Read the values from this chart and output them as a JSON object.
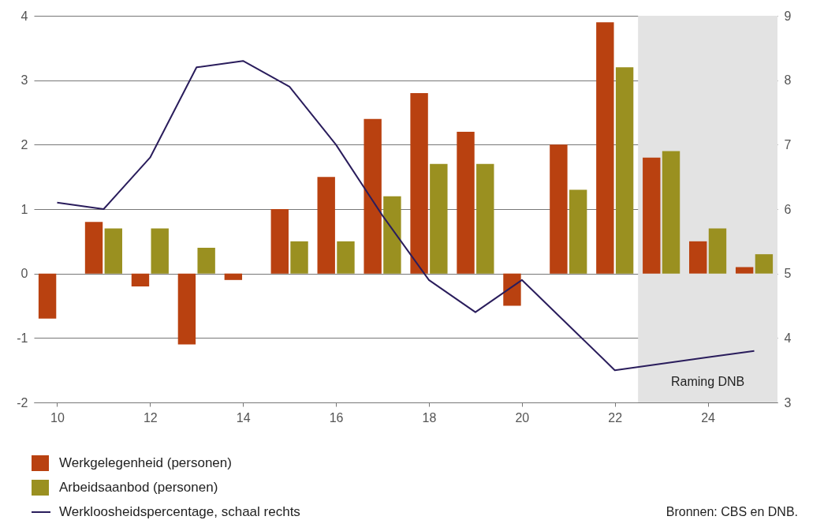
{
  "chart_data": {
    "type": "bar",
    "x": [
      2010,
      2011,
      2012,
      2013,
      2014,
      2015,
      2016,
      2017,
      2018,
      2019,
      2020,
      2021,
      2022,
      2023,
      2024,
      2025
    ],
    "series": [
      {
        "name": "Werkgelegenheid (personen)",
        "color": "#b94110",
        "values": [
          -0.7,
          0.8,
          -0.2,
          -1.1,
          -0.1,
          1.0,
          1.5,
          2.4,
          2.8,
          2.2,
          -0.5,
          2.0,
          3.9,
          1.8,
          0.5,
          0.1
        ]
      },
      {
        "name": "Arbeidsaanbod (personen)",
        "color": "#9a9020",
        "values": [
          0,
          0.7,
          0.7,
          0.4,
          0,
          0.5,
          0.5,
          1.2,
          1.7,
          1.7,
          0,
          1.3,
          3.2,
          1.9,
          0.7,
          0.3
        ]
      },
      {
        "name": "Werkloosheidspercentage, schaal rechts",
        "type": "line",
        "axis": "y2",
        "color": "#2a1d5c",
        "values": [
          6.1,
          6.0,
          6.8,
          8.2,
          8.3,
          7.9,
          7.0,
          5.9,
          4.9,
          4.4,
          4.9,
          4.2,
          3.5,
          3.6,
          3.7,
          3.8
        ]
      }
    ],
    "xlim": [
      2009.5,
      2025.5
    ],
    "xticks": [
      {
        "value": 2010,
        "label": "10"
      },
      {
        "value": 2012,
        "label": "12"
      },
      {
        "value": 2014,
        "label": "14"
      },
      {
        "value": 2016,
        "label": "16"
      },
      {
        "value": 2018,
        "label": "18"
      },
      {
        "value": 2020,
        "label": "20"
      },
      {
        "value": 2022,
        "label": "22"
      },
      {
        "value": 2024,
        "label": "24"
      }
    ],
    "ylim": [
      -2,
      4
    ],
    "yticks": [
      -2,
      -1,
      0,
      1,
      2,
      3,
      4
    ],
    "y2lim": [
      3,
      9
    ],
    "y2ticks": [
      3,
      4,
      5,
      6,
      7,
      8,
      9
    ],
    "bands": [
      {
        "axis": "x",
        "from": 2022.5,
        "to": 2025.5,
        "label": "Raming DNB",
        "color": "#e3e3e3"
      }
    ],
    "grid": "y",
    "legend": "bottom",
    "annotations": [
      "Bronnen: CBS en DNB."
    ]
  }
}
